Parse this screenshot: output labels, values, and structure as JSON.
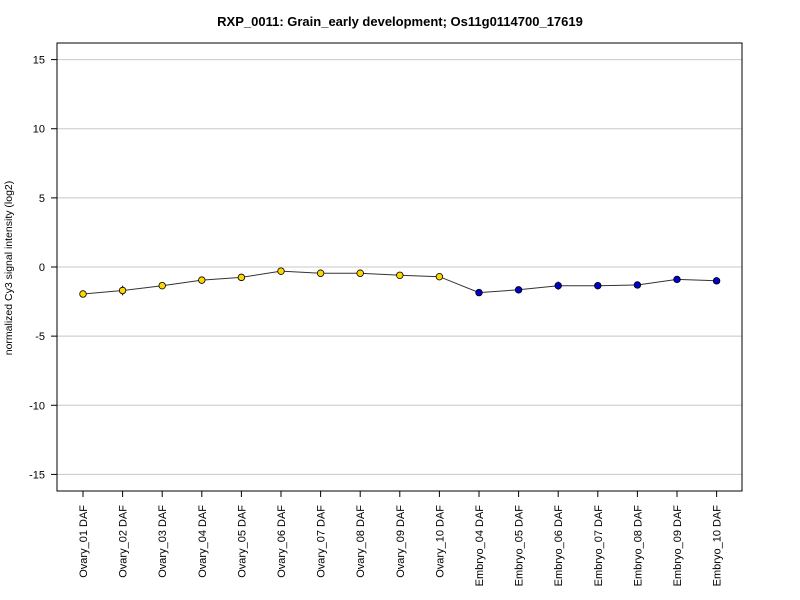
{
  "chart_data": {
    "type": "line",
    "title": "RXP_0011: Grain_early development; Os11g0114700_17619",
    "ylabel": "normalized Cy3 signal intensity (log2)",
    "xlabel": "",
    "ylim": [
      -16.2,
      16.2
    ],
    "yticks": [
      15,
      10,
      5,
      0,
      -5,
      -10,
      -15
    ],
    "grid": "horizontal",
    "categories": [
      "Ovary_01 DAF",
      "Ovary_02 DAF",
      "Ovary_03 DAF",
      "Ovary_04 DAF",
      "Ovary_05 DAF",
      "Ovary_06 DAF",
      "Ovary_07 DAF",
      "Ovary_08 DAF",
      "Ovary_09 DAF",
      "Ovary_10 DAF",
      "Embryo_04 DAF",
      "Embryo_05 DAF",
      "Embryo_06 DAF",
      "Embryo_07 DAF",
      "Embryo_08 DAF",
      "Embryo_09 DAF",
      "Embryo_10 DAF"
    ],
    "values": [
      -1.95,
      -1.7,
      -1.35,
      -0.95,
      -0.75,
      -0.3,
      -0.45,
      -0.45,
      -0.6,
      -0.7,
      -1.85,
      -1.65,
      -1.35,
      -1.35,
      -1.3,
      -0.9,
      -1.0
    ],
    "errors": [
      0.1,
      0.35,
      0.05,
      0.05,
      0.2,
      0.05,
      0.05,
      0.05,
      0.05,
      0.05,
      0.05,
      0.05,
      0.3,
      0.05,
      0.05,
      0.05,
      0.05
    ],
    "point_colors": [
      "#ffd700",
      "#ffd700",
      "#ffd700",
      "#ffd700",
      "#ffd700",
      "#ffd700",
      "#ffd700",
      "#ffd700",
      "#ffd700",
      "#ffd700",
      "#0000cc",
      "#0000cc",
      "#0000cc",
      "#0000cc",
      "#0000cc",
      "#0000cc",
      "#0000cc"
    ],
    "line_color": "#333333",
    "grid_color": "#c8c8c8"
  }
}
